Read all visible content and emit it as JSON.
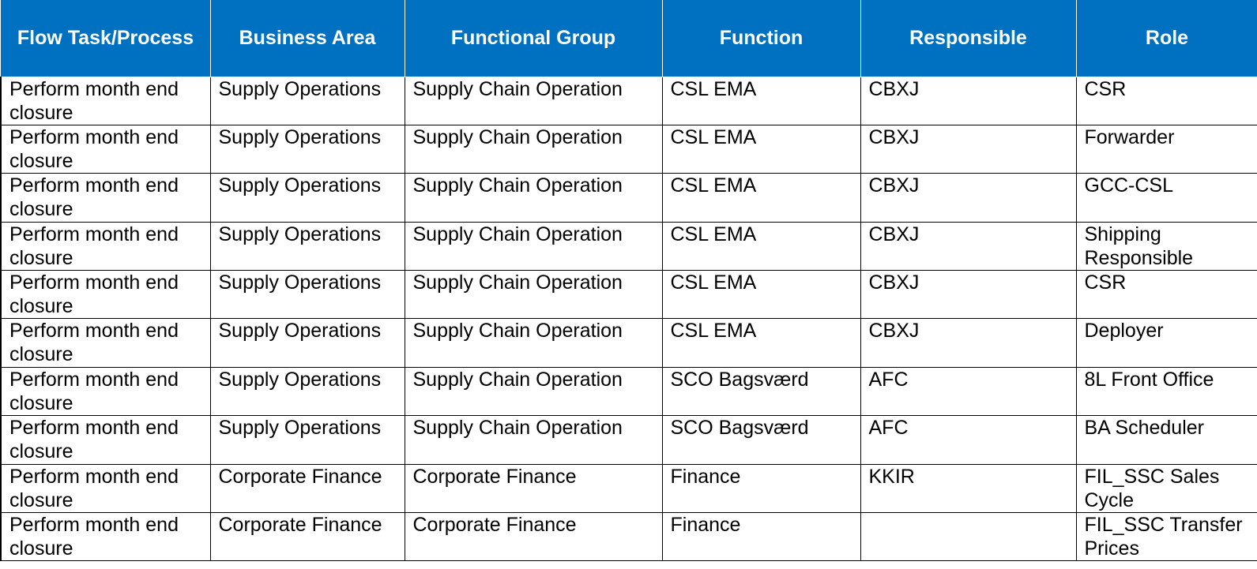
{
  "columns": [
    "Flow Task/Process",
    "Business Area",
    "Functional Group",
    "Function",
    "Responsible",
    "Role"
  ],
  "rows": [
    [
      "Perform month end closure",
      "Supply Operations",
      "Supply Chain Operation",
      "CSL EMA",
      "CBXJ",
      "CSR"
    ],
    [
      "Perform month end closure",
      "Supply Operations",
      "Supply Chain Operation",
      "CSL EMA",
      "CBXJ",
      "Forwarder"
    ],
    [
      "Perform month end closure",
      "Supply Operations",
      "Supply Chain Operation",
      "CSL EMA",
      "CBXJ",
      "GCC-CSL"
    ],
    [
      "Perform month end closure",
      "Supply Operations",
      "Supply Chain Operation",
      "CSL EMA",
      "CBXJ",
      "Shipping Responsible"
    ],
    [
      "Perform month end closure",
      "Supply Operations",
      "Supply Chain Operation",
      "CSL EMA",
      "CBXJ",
      "CSR"
    ],
    [
      "Perform month end closure",
      "Supply Operations",
      "Supply Chain Operation",
      "CSL EMA",
      "CBXJ",
      "Deployer"
    ],
    [
      "Perform month end closure",
      "Supply Operations",
      "Supply Chain Operation",
      "SCO Bagsværd",
      "AFC",
      "8L Front Office"
    ],
    [
      "Perform month end closure",
      "Supply Operations",
      "Supply Chain Operation",
      "SCO Bagsværd",
      "AFC",
      "BA Scheduler"
    ],
    [
      "Perform month end closure",
      "Corporate Finance",
      "Corporate Finance",
      "Finance",
      "KKIR",
      "FIL_SSC Sales Cycle"
    ],
    [
      "Perform month end closure",
      "Corporate Finance",
      "Corporate Finance",
      "Finance",
      "",
      "FIL_SSC Transfer Prices"
    ]
  ],
  "colors": {
    "header_background": "#0070c0",
    "header_text": "#ffffff",
    "cell_text": "#000000",
    "grid_lines": "#000000"
  }
}
